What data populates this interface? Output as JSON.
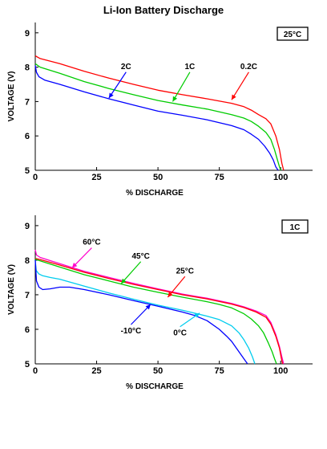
{
  "page_title": "Li-Ion Battery Discharge",
  "chart_data": [
    {
      "type": "line",
      "badge": "25°C",
      "xlabel": "% DISCHARGE",
      "ylabel": "VOLTAGE (V)",
      "xlim": [
        0,
        113
      ],
      "ylim": [
        5,
        9.3
      ],
      "xticks": [
        "0",
        "25",
        "50",
        "75",
        "100"
      ],
      "xtick_values": [
        0,
        25,
        50,
        75,
        100
      ],
      "yticks": [
        "5",
        "6",
        "7",
        "8",
        "9"
      ],
      "ytick_values": [
        5,
        6,
        7,
        8,
        9
      ],
      "series": [
        {
          "name": "0.2C",
          "color": "#ff0000",
          "x": [
            0,
            2,
            10,
            20,
            30,
            40,
            50,
            60,
            70,
            80,
            85,
            88,
            91,
            94,
            96,
            98,
            99.5,
            100.5,
            101.2
          ],
          "y": [
            8.33,
            8.25,
            8.1,
            7.88,
            7.68,
            7.5,
            7.33,
            7.2,
            7.08,
            6.95,
            6.85,
            6.75,
            6.62,
            6.5,
            6.35,
            6.0,
            5.6,
            5.2,
            5.0
          ]
        },
        {
          "name": "1C",
          "color": "#00cc00",
          "x": [
            0,
            2,
            10,
            20,
            30,
            40,
            50,
            60,
            70,
            80,
            85,
            88,
            91,
            94,
            96,
            97.5,
            98.7,
            99.5,
            100
          ],
          "y": [
            8.1,
            8.0,
            7.82,
            7.58,
            7.38,
            7.2,
            7.03,
            6.9,
            6.78,
            6.62,
            6.52,
            6.42,
            6.28,
            6.1,
            5.9,
            5.6,
            5.3,
            5.1,
            5.0
          ]
        },
        {
          "name": "2C",
          "color": "#0000ff",
          "x": [
            0,
            0.5,
            1.5,
            4,
            10,
            20,
            30,
            40,
            50,
            60,
            70,
            80,
            85,
            88,
            91,
            93.5,
            95.5,
            97,
            98,
            99
          ],
          "y": [
            8.05,
            7.85,
            7.72,
            7.62,
            7.5,
            7.28,
            7.08,
            6.9,
            6.72,
            6.6,
            6.47,
            6.3,
            6.18,
            6.05,
            5.9,
            5.7,
            5.5,
            5.3,
            5.1,
            5.0
          ]
        }
      ],
      "annotations": [
        {
          "text": "2C",
          "series": "2C",
          "text_x": 37,
          "text_y": 7.95,
          "point_x": 30,
          "point_y": 7.1
        },
        {
          "text": "1C",
          "series": "1C",
          "text_x": 63,
          "text_y": 7.95,
          "point_x": 56,
          "point_y": 7.0
        },
        {
          "text": "0.2C",
          "series": "0.2C",
          "text_x": 87,
          "text_y": 7.95,
          "point_x": 80,
          "point_y": 7.05
        }
      ]
    },
    {
      "type": "line",
      "badge": "1C",
      "xlabel": "% DISCHARGE",
      "ylabel": "VOLTAGE (V)",
      "xlim": [
        0,
        113
      ],
      "ylim": [
        5,
        9.3
      ],
      "xticks": [
        "0",
        "25",
        "50",
        "75",
        "100"
      ],
      "xtick_values": [
        0,
        25,
        50,
        75,
        100
      ],
      "yticks": [
        "5",
        "6",
        "7",
        "8",
        "9"
      ],
      "ytick_values": [
        5,
        6,
        7,
        8,
        9
      ],
      "series": [
        {
          "name": "60°C",
          "color": "#ff00cc",
          "x": [
            0,
            0.5,
            2,
            10,
            20,
            30,
            40,
            50,
            60,
            70,
            80,
            85,
            90,
            94,
            96,
            98,
            99.5,
            100.5,
            101.2
          ],
          "y": [
            8.3,
            8.15,
            8.08,
            7.9,
            7.68,
            7.5,
            7.33,
            7.17,
            7.02,
            6.9,
            6.75,
            6.65,
            6.53,
            6.4,
            6.2,
            5.85,
            5.5,
            5.2,
            5.0
          ]
        },
        {
          "name": "",
          "color": "#ff0000",
          "x": [
            0,
            2,
            10,
            20,
            30,
            40,
            50,
            60,
            70,
            80,
            85,
            90,
            94,
            96,
            98,
            99.5,
            100.3,
            100.8
          ],
          "y": [
            8.05,
            8.02,
            7.86,
            7.65,
            7.47,
            7.3,
            7.15,
            7.0,
            6.88,
            6.73,
            6.63,
            6.5,
            6.35,
            6.15,
            5.8,
            5.45,
            5.15,
            5.0
          ]
        },
        {
          "name": "45°C",
          "color": "#00cc00",
          "x": [
            0,
            2,
            10,
            20,
            30,
            40,
            50,
            60,
            70,
            75,
            80,
            85,
            88,
            91,
            93,
            95,
            96.5,
            97.5,
            98.3
          ],
          "y": [
            8.03,
            7.98,
            7.8,
            7.58,
            7.4,
            7.22,
            7.07,
            6.93,
            6.8,
            6.72,
            6.62,
            6.45,
            6.3,
            6.1,
            5.9,
            5.6,
            5.35,
            5.15,
            5.0
          ]
        },
        {
          "name": "0°C",
          "color": "#00ccee",
          "x": [
            0,
            0.4,
            1.5,
            3,
            6,
            10,
            20,
            30,
            40,
            50,
            60,
            70,
            75,
            80,
            83,
            85,
            87,
            88.5,
            89.5
          ],
          "y": [
            8.0,
            7.7,
            7.6,
            7.55,
            7.5,
            7.45,
            7.25,
            7.05,
            6.87,
            6.7,
            6.55,
            6.38,
            6.28,
            6.1,
            5.9,
            5.7,
            5.45,
            5.2,
            5.0
          ]
        },
        {
          "name": "-10°C",
          "color": "#0000ff",
          "x": [
            0,
            0.5,
            1.5,
            3,
            6,
            10,
            14,
            20,
            30,
            40,
            50,
            60,
            65,
            70,
            75,
            78,
            80,
            82,
            84,
            85.5,
            86.5
          ],
          "y": [
            8.0,
            7.4,
            7.22,
            7.15,
            7.17,
            7.22,
            7.22,
            7.15,
            7.0,
            6.83,
            6.67,
            6.5,
            6.4,
            6.25,
            6.0,
            5.8,
            5.65,
            5.45,
            5.25,
            5.1,
            5.0
          ]
        }
      ],
      "annotations": [
        {
          "text": "60°C",
          "series": "60°C",
          "text_x": 23,
          "text_y": 8.45,
          "point_x": 15,
          "point_y": 7.78
        },
        {
          "text": "45°C",
          "series": "45°C",
          "text_x": 43,
          "text_y": 8.05,
          "point_x": 35,
          "point_y": 7.32
        },
        {
          "text": "25°C",
          "series": "",
          "text_x": 61,
          "text_y": 7.62,
          "point_x": 54,
          "point_y": 6.93
        },
        {
          "text": "-10°C",
          "series": "-10°C",
          "text_x": 39,
          "text_y": 5.88,
          "point_x": 47,
          "point_y": 6.72
        },
        {
          "text": "0°C",
          "series": "0°C",
          "text_x": 59,
          "text_y": 5.82,
          "point_x": 67,
          "point_y": 6.47
        }
      ]
    }
  ]
}
